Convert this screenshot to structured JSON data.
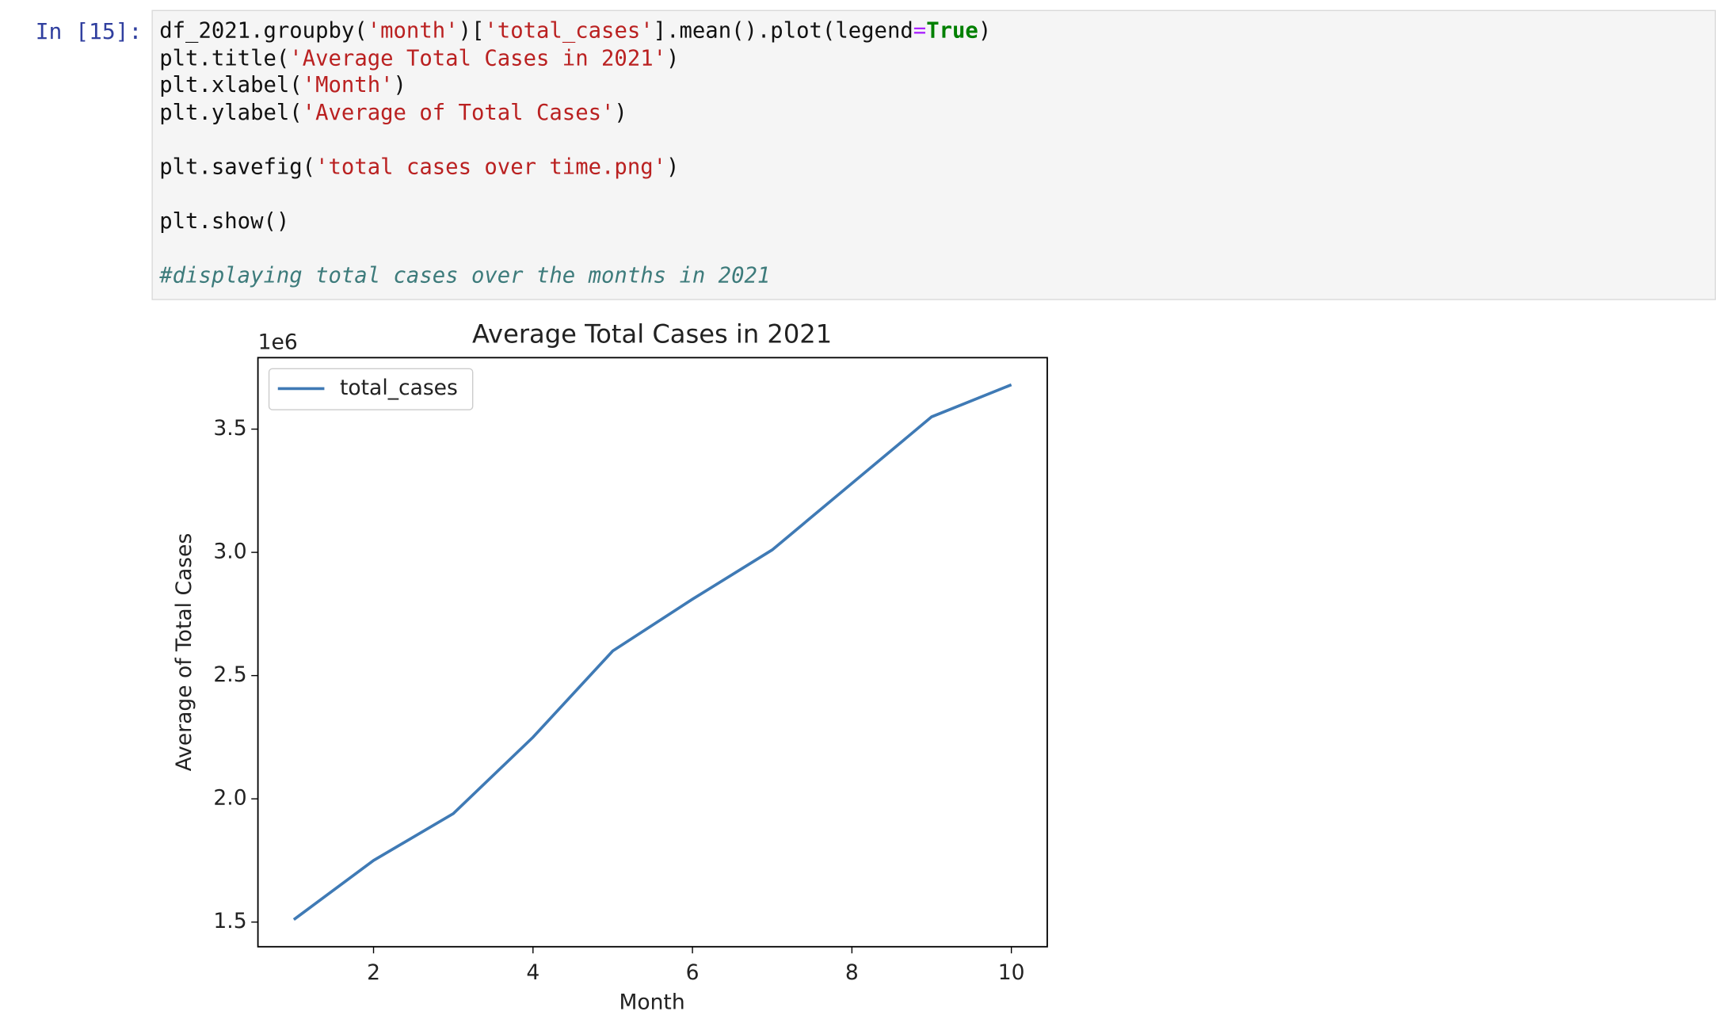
{
  "prompt": "In [15]:",
  "code": [
    [
      "df_2021.groupby('month')['total_cases'].mean().plot(legend=True)",
      "plt.title('Average Total Cases in 2021')",
      "plt.xlabel('Month')",
      "plt.ylabel('Average of Total Cases')"
    ],
    [
      "plt.savefig('total cases over time.png')"
    ],
    [
      "plt.show()"
    ],
    [
      "#displaying total cases over the months in 2021"
    ]
  ],
  "chart_data": {
    "type": "line",
    "title": "Average Total Cases in 2021",
    "x_label": "Month",
    "y_label": "Average of Total Cases",
    "y_offset_label": "1e6",
    "x": [
      1,
      2,
      3,
      4,
      5,
      6,
      7,
      8,
      9,
      10
    ],
    "series": [
      {
        "name": "total_cases",
        "color": "#3f7ab5",
        "values": [
          1.51,
          1.75,
          1.94,
          2.25,
          2.6,
          2.81,
          3.01,
          3.28,
          3.55,
          3.68
        ]
      }
    ],
    "xlim": [
      0.55,
      10.45
    ],
    "xticks": [
      2,
      4,
      6,
      8,
      10
    ],
    "ylim": [
      1.4,
      3.79
    ],
    "yticks": [
      1.5,
      {
        "value": 2,
        "label": "2.0"
      },
      2.5,
      {
        "value": 3,
        "label": "3.0"
      },
      3.5
    ],
    "legend": "upper left",
    "grid": false
  }
}
